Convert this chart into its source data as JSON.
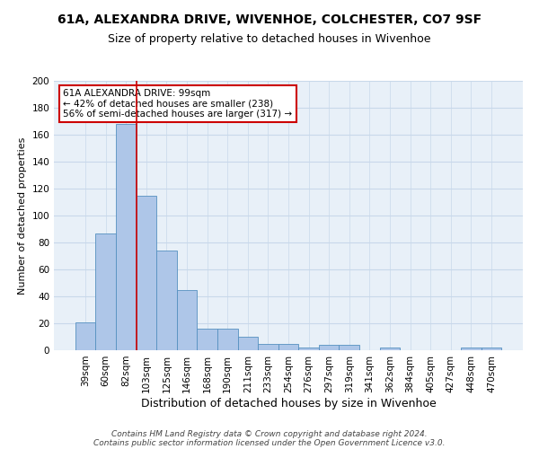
{
  "title": "61A, ALEXANDRA DRIVE, WIVENHOE, COLCHESTER, CO7 9SF",
  "subtitle": "Size of property relative to detached houses in Wivenhoe",
  "xlabel": "Distribution of detached houses by size in Wivenhoe",
  "ylabel": "Number of detached properties",
  "bar_labels": [
    "39sqm",
    "60sqm",
    "82sqm",
    "103sqm",
    "125sqm",
    "146sqm",
    "168sqm",
    "190sqm",
    "211sqm",
    "233sqm",
    "254sqm",
    "276sqm",
    "297sqm",
    "319sqm",
    "341sqm",
    "362sqm",
    "384sqm",
    "405sqm",
    "427sqm",
    "448sqm",
    "470sqm"
  ],
  "bar_values": [
    21,
    87,
    168,
    115,
    74,
    45,
    16,
    16,
    10,
    5,
    5,
    2,
    4,
    4,
    0,
    2,
    0,
    0,
    0,
    2,
    2
  ],
  "bar_color": "#aec6e8",
  "bar_edge_color": "#5590c0",
  "grid_color": "#c8d8ea",
  "background_color": "#e8f0f8",
  "vline_x": 2.5,
  "vline_color": "#cc0000",
  "annotation_line1": "61A ALEXANDRA DRIVE: 99sqm",
  "annotation_line2": "← 42% of detached houses are smaller (238)",
  "annotation_line3": "56% of semi-detached houses are larger (317) →",
  "annotation_box_color": "white",
  "annotation_box_edge_color": "#cc0000",
  "footer_line1": "Contains HM Land Registry data © Crown copyright and database right 2024.",
  "footer_line2": "Contains public sector information licensed under the Open Government Licence v3.0.",
  "ylim": [
    0,
    200
  ],
  "yticks": [
    0,
    20,
    40,
    60,
    80,
    100,
    120,
    140,
    160,
    180,
    200
  ],
  "title_fontsize": 10,
  "subtitle_fontsize": 9,
  "xlabel_fontsize": 9,
  "ylabel_fontsize": 8,
  "tick_fontsize": 7.5,
  "annotation_fontsize": 7.5,
  "footer_fontsize": 6.5
}
